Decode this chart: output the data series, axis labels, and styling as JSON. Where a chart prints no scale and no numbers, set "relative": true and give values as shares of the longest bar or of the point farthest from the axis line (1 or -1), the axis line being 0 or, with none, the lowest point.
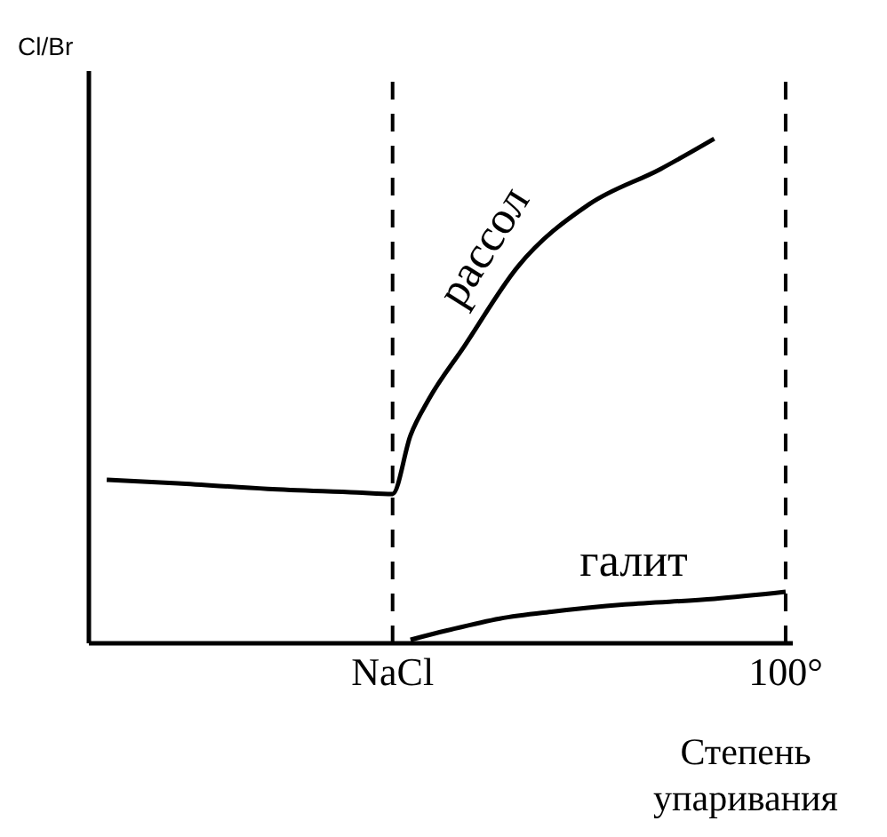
{
  "chart_data": {
    "type": "line",
    "relative": true,
    "ylabel": "Cl/Br",
    "xlabel": "Степень упаривания",
    "categories": [
      null,
      null,
      null,
      null,
      null,
      null,
      null,
      null,
      null,
      null,
      null,
      null,
      null,
      null,
      null,
      null,
      null,
      "NaCl",
      null,
      null,
      null,
      null,
      null,
      null,
      null,
      null,
      null,
      null,
      null,
      null,
      null,
      null,
      null,
      null,
      null,
      null,
      null,
      null,
      null,
      "100°"
    ],
    "series": [
      {
        "name": "рассол",
        "color": "#000000",
        "values": [
          null,
          0.324,
          null,
          null,
          null,
          0.317,
          null,
          null,
          null,
          null,
          0.306,
          null,
          null,
          null,
          null,
          0.299,
          null,
          0.296,
          0.412,
          0.482,
          null,
          0.588,
          null,
          null,
          0.746,
          null,
          null,
          null,
          0.87,
          null,
          null,
          null,
          0.94,
          null,
          null,
          1,
          null,
          null,
          null,
          null
        ]
      },
      {
        "name": "галит",
        "color": "#000000",
        "values": [
          null,
          null,
          null,
          null,
          null,
          null,
          null,
          null,
          null,
          null,
          null,
          null,
          null,
          null,
          null,
          null,
          null,
          null,
          0.007,
          null,
          0.025,
          null,
          null,
          0.049,
          null,
          null,
          0.063,
          null,
          null,
          null,
          0.077,
          null,
          null,
          null,
          null,
          0.088,
          null,
          null,
          null,
          0.102
        ]
      }
    ],
    "ref_lines": [
      {
        "axis": "x",
        "value": "NaCl",
        "line_style": "dashed",
        "color": "#000000"
      },
      {
        "axis": "x",
        "value": "100°",
        "line_style": "dashed",
        "color": "#000000"
      }
    ],
    "legend": false,
    "grid": false,
    "marker": "none",
    "line_style": "solid"
  }
}
